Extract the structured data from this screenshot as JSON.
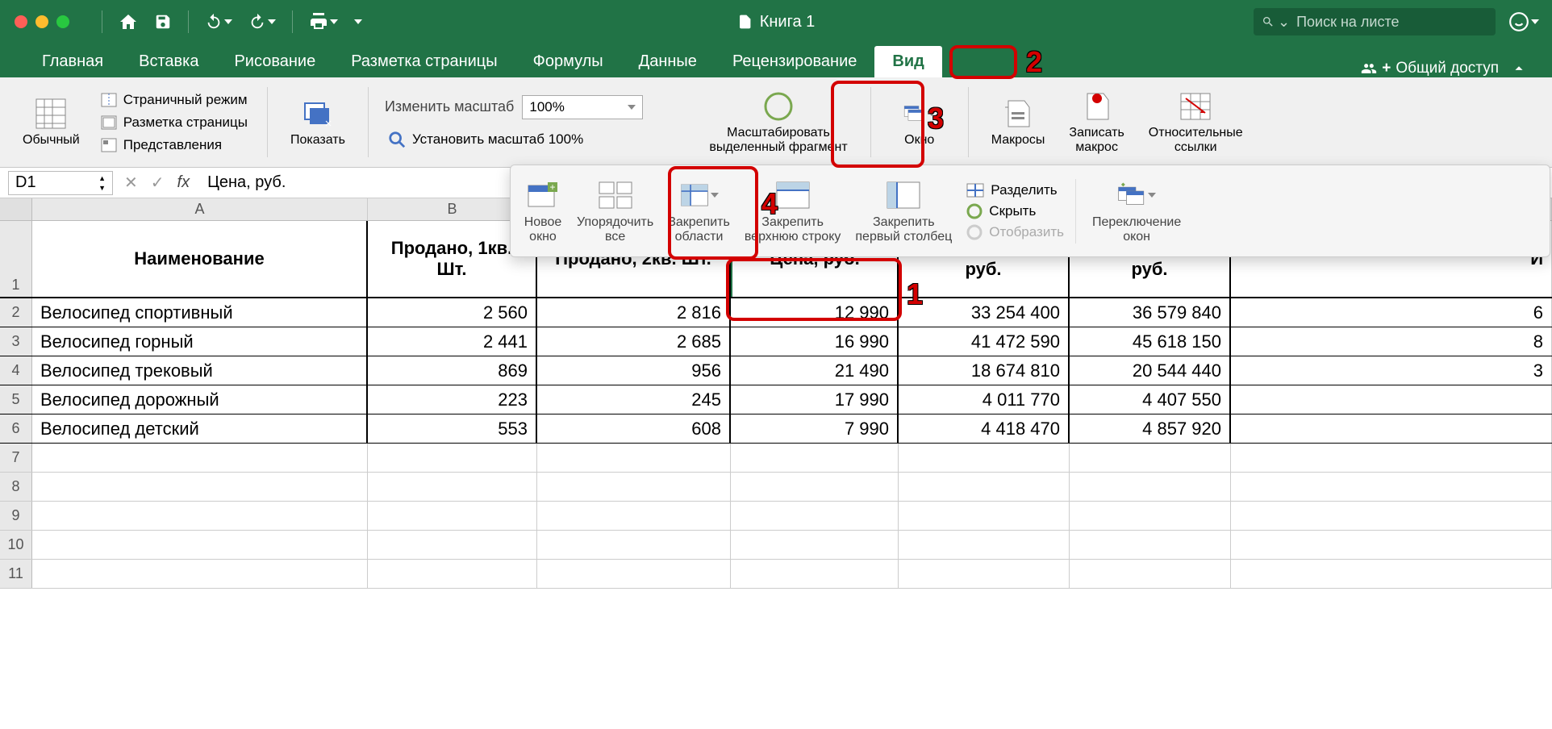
{
  "titlebar": {
    "document_name": "Книга 1",
    "search_placeholder": "Поиск на листе"
  },
  "tabs": {
    "items": [
      "Главная",
      "Вставка",
      "Рисование",
      "Разметка страницы",
      "Формулы",
      "Данные",
      "Рецензирование",
      "Вид"
    ],
    "active_index": 7,
    "share_label": "Общий доступ"
  },
  "ribbon": {
    "normal_view": "Обычный",
    "page_break": "Страничный режим",
    "page_layout": "Разметка страницы",
    "custom_views": "Представления",
    "show": "Показать",
    "zoom_label": "Изменить масштаб",
    "zoom_value": "100%",
    "zoom_100": "Установить масштаб 100%",
    "zoom_selection_l1": "Масштабировать",
    "zoom_selection_l2": "выделенный фрагмент",
    "window": "Окно",
    "macros": "Макросы",
    "record_macro_l1": "Записать",
    "record_macro_l2": "макрос",
    "relative_refs_l1": "Относительные",
    "relative_refs_l2": "ссылки"
  },
  "window_dropdown": {
    "new_window_l1": "Новое",
    "new_window_l2": "окно",
    "arrange_l1": "Упорядочить",
    "arrange_l2": "все",
    "freeze_panes_l1": "Закрепить",
    "freeze_panes_l2": "области",
    "freeze_top_l1": "Закрепить",
    "freeze_top_l2": "верхнюю строку",
    "freeze_first_l1": "Закрепить",
    "freeze_first_l2": "первый столбец",
    "split": "Разделить",
    "hide": "Скрыть",
    "unhide": "Отобразить",
    "switch_l1": "Переключение",
    "switch_l2": "окон"
  },
  "formula_bar": {
    "cell_ref": "D1",
    "formula": "Цена, руб."
  },
  "annotations": {
    "n1": "1",
    "n2": "2",
    "n3": "3",
    "n4": "4"
  },
  "grid": {
    "col_headers": [
      "A",
      "B"
    ],
    "headers": [
      "Наименование",
      "Продано, 1кв. Шт.",
      "Продано, 2кв. Шт.",
      "Цена, руб.",
      "Итого за 1кв., руб.",
      "Итого за 2кв., руб.",
      "И"
    ],
    "rows": [
      {
        "n": 2,
        "a": "Велосипед спортивный",
        "b": "2 560",
        "c": "2 816",
        "d": "12 990",
        "e": "33 254 400",
        "f": "36 579 840",
        "g": "6"
      },
      {
        "n": 3,
        "a": "Велосипед горный",
        "b": "2 441",
        "c": "2 685",
        "d": "16 990",
        "e": "41 472 590",
        "f": "45 618 150",
        "g": "8"
      },
      {
        "n": 4,
        "a": "Велосипед трековый",
        "b": "869",
        "c": "956",
        "d": "21 490",
        "e": "18 674 810",
        "f": "20 544 440",
        "g": "3"
      },
      {
        "n": 5,
        "a": "Велосипед дорожный",
        "b": "223",
        "c": "245",
        "d": "17 990",
        "e": "4 011 770",
        "f": "4 407 550",
        "g": ""
      },
      {
        "n": 6,
        "a": "Велосипед детский",
        "b": "553",
        "c": "608",
        "d": "7 990",
        "e": "4 418 470",
        "f": "4 857 920",
        "g": ""
      }
    ],
    "empty_rows": [
      7,
      8,
      9,
      10,
      11
    ]
  },
  "colors": {
    "excel_green": "#217346",
    "red_highlight": "#d30000"
  }
}
